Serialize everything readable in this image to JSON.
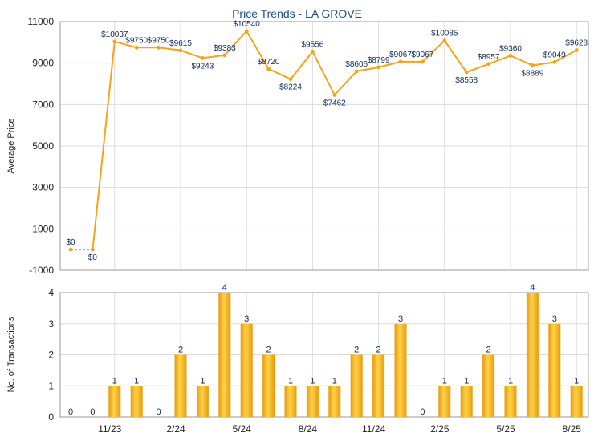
{
  "title": "Price Trends - LA GROVE",
  "colors": {
    "line": "#f5a318",
    "bar_light": "#ffd24a",
    "bar_dark": "#e89a0c",
    "grid": "#dcdcdc",
    "label": "#0c2a5a",
    "title": "#1f4e8c"
  },
  "x_tick_labels": [
    "11/23",
    "2/24",
    "5/24",
    "8/24",
    "11/24",
    "2/25",
    "5/25",
    "8/25"
  ],
  "chart_data": [
    {
      "type": "line",
      "title": "Price Trends - LA GROVE",
      "ylabel": "Average Price",
      "ylim": [
        -1000,
        11000
      ],
      "yticks": [
        -1000,
        1000,
        3000,
        5000,
        7000,
        9000,
        11000
      ],
      "grid": true,
      "x": [
        "9/23",
        "10/23",
        "11/23",
        "12/23",
        "1/24",
        "2/24",
        "3/24",
        "4/24",
        "5/24",
        "6/24",
        "7/24",
        "8/24",
        "9/24",
        "10/24",
        "11/24",
        "12/24",
        "1/25",
        "2/25",
        "3/25",
        "4/25",
        "5/25",
        "6/25",
        "7/25",
        "8/25"
      ],
      "values": [
        0,
        0,
        10037,
        9750,
        9750,
        9615,
        9243,
        9383,
        10540,
        8720,
        8224,
        9556,
        7462,
        8606,
        8799,
        9067,
        9067,
        10085,
        8558,
        8957,
        9360,
        8889,
        9049,
        9628
      ],
      "labels": [
        "$0",
        "$0",
        "$10037",
        "$9750",
        "$9750",
        "$9615",
        "$9243",
        "$9383",
        "$10540",
        "$8720",
        "$8224",
        "$9556",
        "$7462",
        "$8606",
        "$8799",
        "$9067",
        "$9067",
        "$10085",
        "$8558",
        "$8957",
        "$9360",
        "$8889",
        "$9049",
        "$9628"
      ]
    },
    {
      "type": "bar",
      "ylabel": "No. of Transactions",
      "ylim": [
        0,
        4
      ],
      "yticks": [
        0,
        1,
        2,
        3,
        4
      ],
      "grid": true,
      "categories": [
        "9/23",
        "10/23",
        "11/23",
        "12/23",
        "1/24",
        "2/24",
        "3/24",
        "4/24",
        "5/24",
        "6/24",
        "7/24",
        "8/24",
        "9/24",
        "10/24",
        "11/24",
        "12/24",
        "1/25",
        "2/25",
        "3/25",
        "4/25",
        "5/25",
        "6/25",
        "7/25",
        "8/25"
      ],
      "values": [
        0,
        0,
        1,
        1,
        0,
        2,
        1,
        4,
        3,
        2,
        1,
        1,
        1,
        2,
        2,
        3,
        0,
        1,
        1,
        2,
        1,
        4,
        3,
        1
      ]
    }
  ]
}
